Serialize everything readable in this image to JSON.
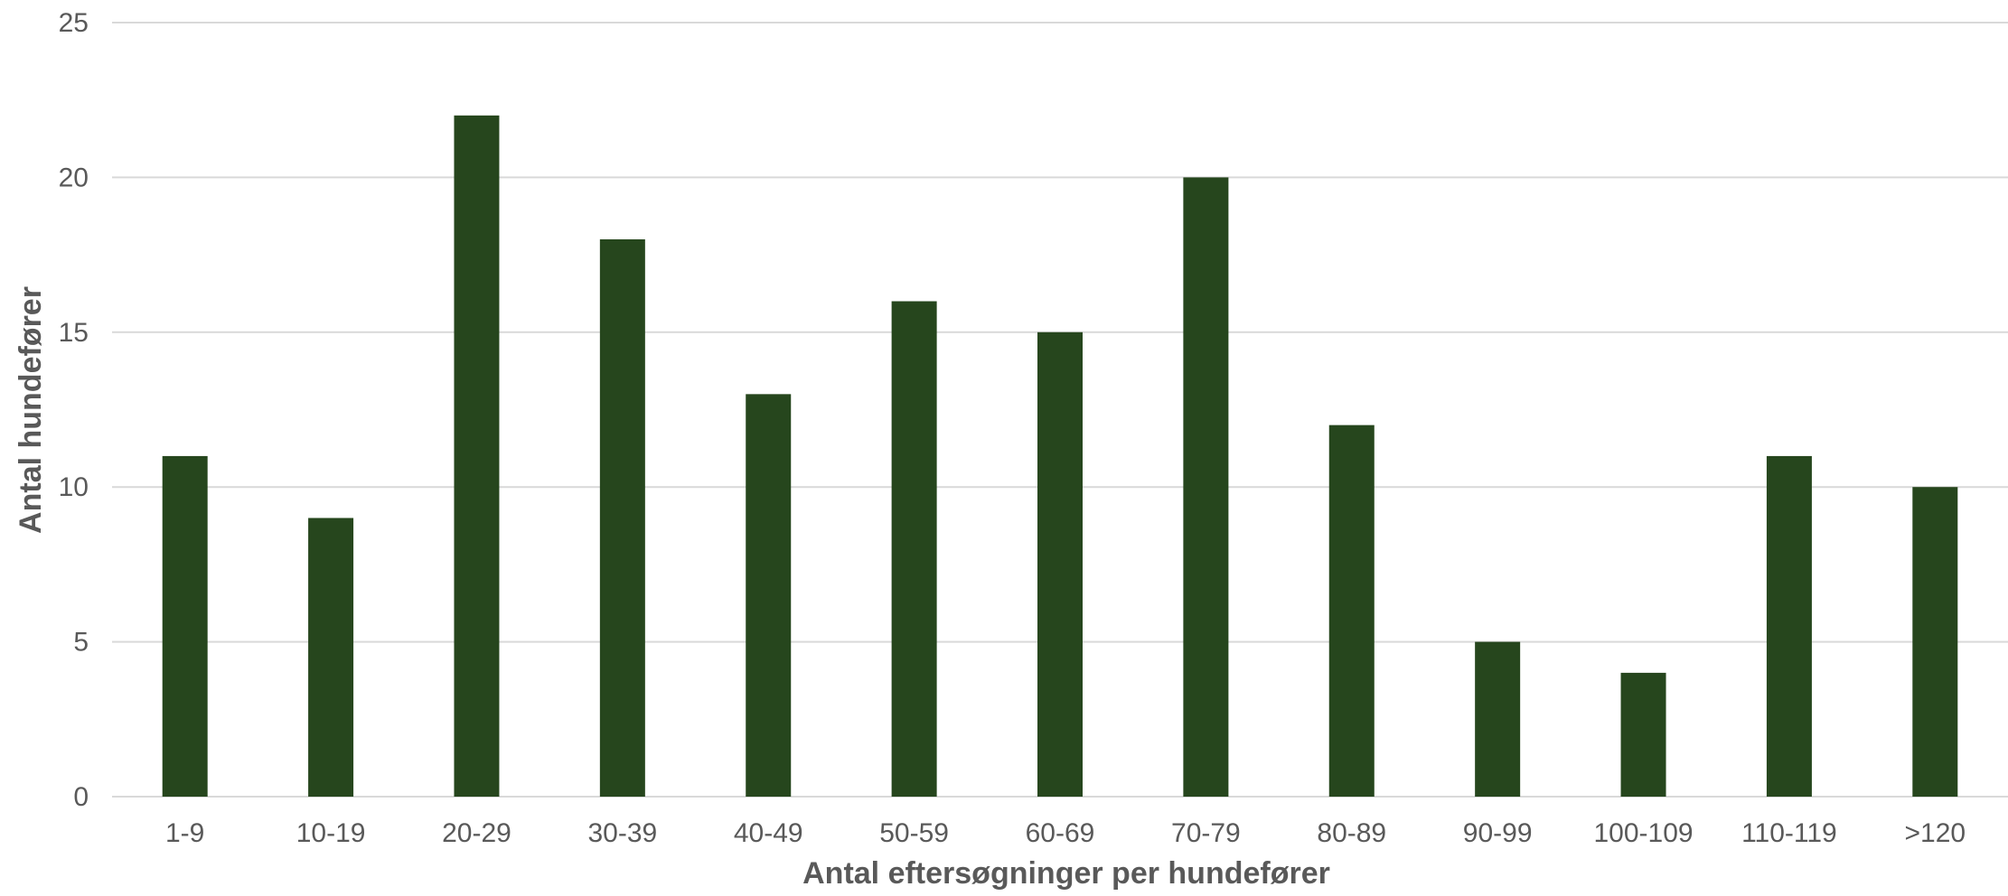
{
  "colors": {
    "bar": "#26461d",
    "grid": "#d9d9d9",
    "text": "#595959",
    "background": "#ffffff"
  },
  "chart_data": {
    "type": "bar",
    "categories": [
      "1-9",
      "10-19",
      "20-29",
      "30-39",
      "40-49",
      "50-59",
      "60-69",
      "70-79",
      "80-89",
      "90-99",
      "100-109",
      "110-119",
      ">120"
    ],
    "values": [
      11,
      9,
      22,
      18,
      13,
      16,
      15,
      20,
      12,
      5,
      4,
      11,
      10
    ],
    "xlabel": "Antal eftersøgninger per hundefører",
    "ylabel": "Antal hundefører",
    "ylim": [
      0,
      25
    ],
    "yticks": [
      0,
      5,
      10,
      15,
      20,
      25
    ],
    "grid": true,
    "legend": "none"
  }
}
